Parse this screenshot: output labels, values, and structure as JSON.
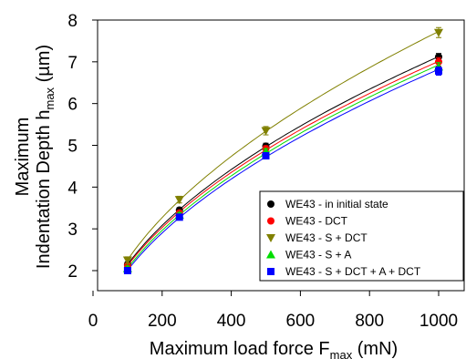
{
  "chart_data": {
    "type": "scatter",
    "xlabel": "Maximum load force F",
    "xlabel_sub": "max",
    "xlabel_unit": " (mN)",
    "ylabel_line1": "Maximum",
    "ylabel_line2": "Indentation Depth h",
    "ylabel_sub": "max",
    "ylabel_unit": " (µm)",
    "xlim": [
      0,
      1100
    ],
    "ylim": [
      1.5,
      8
    ],
    "x_ticks": [
      0,
      200,
      400,
      600,
      800,
      1000
    ],
    "y_ticks": [
      2,
      3,
      4,
      5,
      6,
      7,
      8
    ],
    "legend_position": "bottom-right",
    "grid": false,
    "fit_curves": true,
    "series": [
      {
        "name": "WE43 - in initial state",
        "marker": "circle",
        "color": "#000000",
        "x": [
          100,
          250,
          500,
          1000
        ],
        "y": [
          2.15,
          3.45,
          4.98,
          7.12
        ],
        "err": [
          0.06,
          0.06,
          0.07,
          0.08
        ]
      },
      {
        "name": "WE43 - DCT",
        "marker": "circle",
        "color": "#ff0000",
        "x": [
          100,
          250,
          500,
          1000
        ],
        "y": [
          2.12,
          3.38,
          4.92,
          7.0
        ],
        "err": [
          0.06,
          0.06,
          0.07,
          0.1
        ]
      },
      {
        "name": "WE43 - S + DCT",
        "marker": "triangle-down",
        "color": "#808000",
        "x": [
          100,
          250,
          500,
          1000
        ],
        "y": [
          2.25,
          3.7,
          5.35,
          7.7
        ],
        "err": [
          0.08,
          0.08,
          0.1,
          0.12
        ]
      },
      {
        "name": "WE43 - S + A",
        "marker": "triangle-up",
        "color": "#00dd00",
        "x": [
          100,
          250,
          500,
          1000
        ],
        "y": [
          2.05,
          3.33,
          4.85,
          6.88
        ],
        "err": [
          0.06,
          0.06,
          0.07,
          0.1
        ]
      },
      {
        "name": "WE43 - S + DCT + A + DCT",
        "marker": "square",
        "color": "#0000ff",
        "x": [
          100,
          250,
          500,
          1000
        ],
        "y": [
          2.0,
          3.28,
          4.75,
          6.78
        ],
        "err": [
          0.06,
          0.06,
          0.07,
          0.1
        ]
      }
    ]
  }
}
